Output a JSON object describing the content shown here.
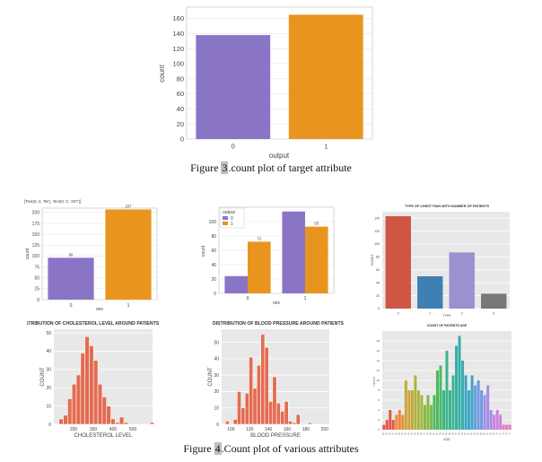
{
  "figure3": {
    "caption_prefix": "Figure ",
    "caption_num": "3",
    "caption_suffix": ".count plot of target attribute"
  },
  "figure4": {
    "caption_prefix": "Figure ",
    "caption_num": "4",
    "caption_suffix": ".Count plot of various attributes"
  },
  "chart_data": [
    {
      "id": "target",
      "type": "bar",
      "style": "white",
      "categories": [
        "0",
        "1"
      ],
      "values": [
        138,
        165
      ],
      "colors": [
        "#8a74c6",
        "#e8951f"
      ],
      "title": "",
      "xlabel": "output",
      "ylabel": "count",
      "ylim": [
        0,
        175
      ],
      "yticks": [
        0,
        20,
        40,
        60,
        80,
        100,
        120,
        140,
        160
      ]
    },
    {
      "id": "sex",
      "type": "bar",
      "style": "white",
      "categories": [
        "0",
        "1"
      ],
      "values": [
        96,
        207
      ],
      "colors": [
        "#8a74c6",
        "#e8951f"
      ],
      "data_labels": [
        "96",
        "207"
      ],
      "title": "",
      "xlabel": "sex",
      "ylabel": "count",
      "ylim": [
        0,
        210
      ],
      "yticks": [
        0,
        25,
        50,
        75,
        100,
        125,
        150,
        175,
        200
      ],
      "annotation": "[Text(0, 0, '96'), Text(0, 0, '207')]"
    },
    {
      "id": "sex_output",
      "type": "bar",
      "style": "white",
      "categories": [
        "0",
        "1"
      ],
      "series": [
        {
          "name": "0",
          "values": [
            24,
            114
          ],
          "color": "#8a74c6"
        },
        {
          "name": "1",
          "values": [
            72,
            93
          ],
          "color": "#e8951f"
        }
      ],
      "data_labels": [
        "",
        "72",
        "",
        "93"
      ],
      "legend_title": "output",
      "title": "",
      "xlabel": "sex",
      "ylabel": "count",
      "ylim": [
        0,
        120
      ],
      "yticks": [
        0,
        20,
        40,
        60,
        80,
        100
      ]
    },
    {
      "id": "chest_pain",
      "type": "bar",
      "style": "grey",
      "categories": [
        "0",
        "1",
        "2",
        "3"
      ],
      "values": [
        143,
        50,
        87,
        23
      ],
      "colors": [
        "#cf5544",
        "#3e80b1",
        "#9c91cf",
        "#777777"
      ],
      "title": "TYPE OF CHEST PAIN WITH NUMBER OF PATIENTS",
      "xlabel": "TYPE",
      "ylabel": "COUNT",
      "ylim": [
        0,
        150
      ],
      "yticks": [
        0,
        20,
        40,
        60,
        80,
        100,
        120,
        140
      ]
    },
    {
      "id": "cholesterol",
      "type": "bar",
      "style": "grey",
      "histogram": true,
      "x_start": 126,
      "bin_width": 21.9,
      "values": [
        3,
        5,
        14,
        22,
        27,
        39,
        48,
        43,
        35,
        22,
        15,
        10,
        3,
        1,
        4,
        1,
        0,
        0,
        0,
        0,
        0,
        1
      ],
      "color": "#e36c52",
      "title": "DISTRIBUTION OF CHOLESTEROL LEVEL AROUND PATIENTS",
      "xlabel": "CHOLESTEROL LEVEL",
      "ylabel": "COUNT",
      "xlim": [
        100,
        600
      ],
      "ylim": [
        0,
        52
      ],
      "xticks": [
        200,
        300,
        400,
        500
      ],
      "yticks": [
        0,
        10,
        20,
        30,
        40,
        50
      ]
    },
    {
      "id": "blood_pressure",
      "type": "bar",
      "style": "grey",
      "histogram": true,
      "x_start": 94,
      "bin_width": 4.2,
      "values": [
        2,
        0,
        3,
        20,
        10,
        19,
        41,
        22,
        36,
        55,
        47,
        14,
        29,
        13,
        8,
        14,
        2,
        1,
        6,
        0,
        0,
        1
      ],
      "color": "#e36c52",
      "title": "DISTRIBUTION OF BLOOD PRESSURE AROUND PATIENTS",
      "xlabel": "BLOOD PRESSURE",
      "ylabel": "COUNT",
      "xlim": [
        90,
        205
      ],
      "ylim": [
        0,
        58
      ],
      "xticks": [
        100,
        120,
        140,
        160,
        180,
        200
      ],
      "yticks": [
        0,
        10,
        20,
        30,
        40,
        50
      ]
    },
    {
      "id": "age",
      "type": "bar",
      "style": "grey",
      "categories": [
        "29",
        "34",
        "35",
        "37",
        "38",
        "39",
        "40",
        "41",
        "42",
        "43",
        "44",
        "45",
        "46",
        "47",
        "48",
        "49",
        "50",
        "51",
        "52",
        "53",
        "54",
        "55",
        "56",
        "57",
        "58",
        "59",
        "60",
        "61",
        "62",
        "63",
        "64",
        "65",
        "66",
        "67",
        "68",
        "69",
        "70",
        "71",
        "74",
        "76",
        "77"
      ],
      "values": [
        1,
        2,
        4,
        2,
        3,
        4,
        3,
        10,
        8,
        8,
        11,
        8,
        7,
        5,
        7,
        5,
        7,
        12,
        13,
        8,
        16,
        8,
        11,
        17,
        19,
        14,
        11,
        8,
        11,
        9,
        10,
        8,
        7,
        9,
        4,
        3,
        4,
        3,
        1,
        1,
        1
      ],
      "title": "COUNT OF PATIENTS AGE",
      "xlabel": "AGE",
      "ylabel": "COUNT",
      "ylim": [
        0,
        20
      ],
      "yticks": [
        0,
        2,
        4,
        6,
        8,
        10,
        12,
        14,
        16,
        18
      ]
    }
  ]
}
